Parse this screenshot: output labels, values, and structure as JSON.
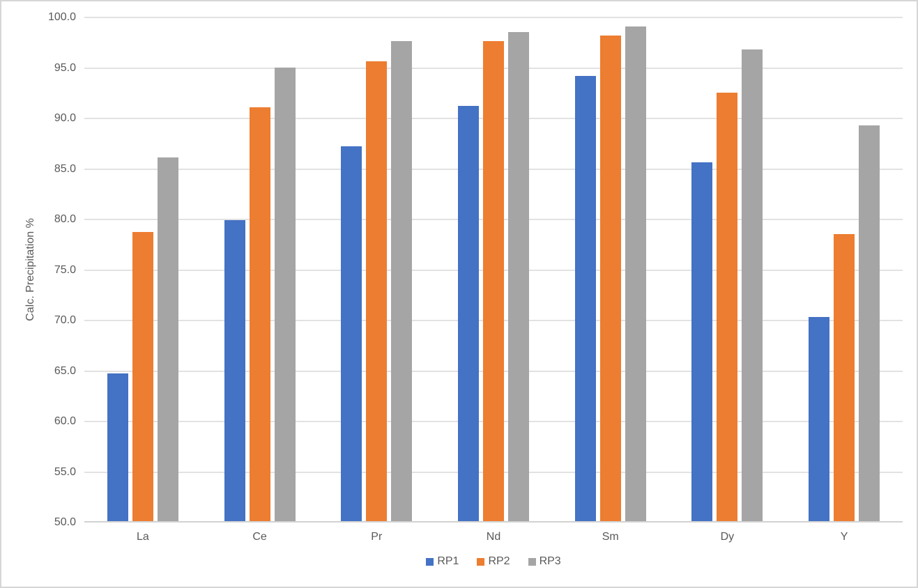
{
  "chart_data": {
    "type": "bar",
    "title": "",
    "ylabel": "Calc. Precipitation %",
    "xlabel": "",
    "ylim": [
      50.0,
      100.0
    ],
    "ytick_step": 5.0,
    "ytick_labels": [
      "100.0",
      "95.0",
      "90.0",
      "85.0",
      "80.0",
      "75.0",
      "70.0",
      "65.0",
      "60.0",
      "55.0",
      "50.0"
    ],
    "grid": true,
    "legend_position": "bottom",
    "categories": [
      "La",
      "Ce",
      "Pr",
      "Nd",
      "Sm",
      "Dy",
      "Y"
    ],
    "series": [
      {
        "name": "RP1",
        "color": "#4472C4",
        "values": [
          64.6,
          79.8,
          87.1,
          91.1,
          94.1,
          85.5,
          70.2
        ]
      },
      {
        "name": "RP2",
        "color": "#ED7D31",
        "values": [
          78.6,
          91.0,
          95.5,
          97.5,
          98.1,
          92.4,
          78.4
        ]
      },
      {
        "name": "RP3",
        "color": "#A5A5A5",
        "values": [
          86.0,
          94.9,
          97.5,
          98.4,
          99.0,
          96.7,
          89.2
        ]
      }
    ]
  },
  "colors": {
    "gridline": "#e2e2e2",
    "axis_line": "#d2d2d2",
    "text": "#595959",
    "border": "#d6d6d6"
  }
}
